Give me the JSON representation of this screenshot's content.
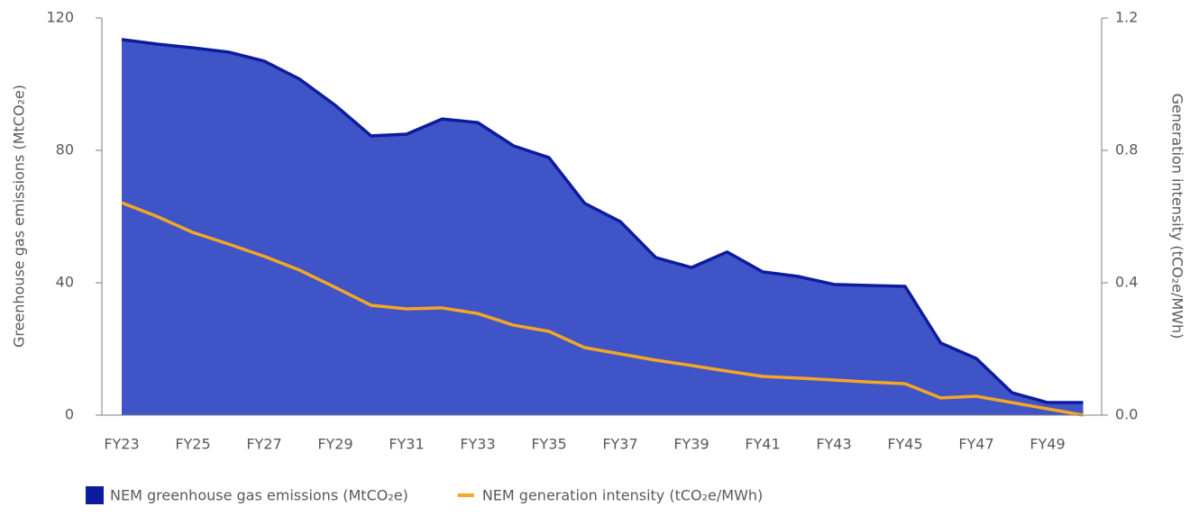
{
  "chart_data": {
    "type": "area_line",
    "categories": [
      "FY23",
      null,
      "FY25",
      null,
      "FY27",
      null,
      "FY29",
      null,
      "FY31",
      null,
      "FY33",
      null,
      "FY35",
      null,
      "FY37",
      null,
      "FY39",
      null,
      "FY41",
      null,
      "FY43",
      null,
      "FY45",
      null,
      "FY47",
      null,
      "FY49",
      null
    ],
    "series": [
      {
        "name": "NEM greenhouse gas emissions (MtCO₂e)",
        "type": "area",
        "color": "#0d1b9e",
        "fill": "#3f55c7",
        "axis": "y",
        "values": [
          113.5,
          112.1,
          111,
          109.7,
          107,
          101.5,
          93.6,
          84.4,
          84.9,
          89.5,
          88.4,
          81.4,
          77.8,
          64,
          58.5,
          47.6,
          44.6,
          49.3,
          43.3,
          41.9,
          39.5,
          39.2,
          38.9,
          21.8,
          17.1,
          6.8,
          3.8,
          3.8
        ]
      },
      {
        "name": "NEM generation intensity (tCO₂e/MWh)",
        "type": "line",
        "color": "#f5a623",
        "axis": "y2",
        "values": [
          0.642,
          0.6,
          0.552,
          0.517,
          0.48,
          0.438,
          0.386,
          0.332,
          0.321,
          0.324,
          0.307,
          0.272,
          0.253,
          0.204,
          0.185,
          0.166,
          0.15,
          0.133,
          0.117,
          0.112,
          0.106,
          0.1,
          0.095,
          0.052,
          0.057,
          0.038,
          0.019,
          0.0
        ]
      }
    ],
    "ylabel": "Greenhouse gas emissions (MtCO₂e)",
    "y2label": "Generation intensity (tCO₂e/MWh)",
    "ylim": [
      0,
      120
    ],
    "yticks": [
      0,
      40,
      80,
      120
    ],
    "y2lim": [
      0,
      1.2
    ],
    "y2ticks": [
      {
        "value": 0,
        "label": "0.0"
      },
      0.4,
      0.8,
      1.2
    ],
    "grid": false,
    "legend": "bottom"
  }
}
